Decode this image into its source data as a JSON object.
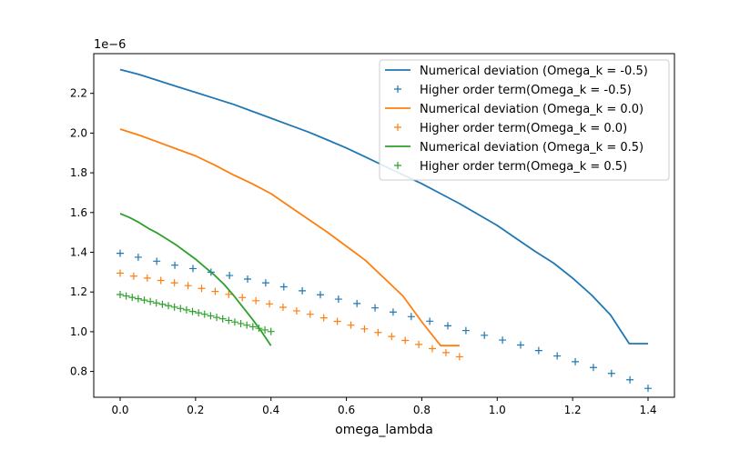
{
  "chart_data": {
    "type": "line",
    "title": "",
    "xlabel": "omega_lambda",
    "ylabel": "",
    "y_scale_label": "1e−6",
    "xlim": [
      -0.07,
      1.47
    ],
    "ylim": [
      0.67,
      2.4
    ],
    "x_ticks": [
      0.0,
      0.2,
      0.4,
      0.6,
      0.8,
      1.0,
      1.2,
      1.4
    ],
    "x_tick_labels": [
      "0.0",
      "0.2",
      "0.4",
      "0.6",
      "0.8",
      "1.0",
      "1.2",
      "1.4"
    ],
    "y_ticks": [
      0.8,
      1.0,
      1.2,
      1.4,
      1.6,
      1.8,
      2.0,
      2.2
    ],
    "y_tick_labels": [
      "0.8",
      "1.0",
      "1.2",
      "1.4",
      "1.6",
      "1.8",
      "2.0",
      "2.2"
    ],
    "grid": false,
    "legend_position": "top-right",
    "series": [
      {
        "name": "Numerical deviation (Omega_k = -0.5)",
        "style": "line",
        "color": "#1f77b4",
        "x": [
          0.0,
          0.05,
          0.1,
          0.15,
          0.2,
          0.25,
          0.3,
          0.35,
          0.4,
          0.45,
          0.5,
          0.55,
          0.6,
          0.65,
          0.7,
          0.75,
          0.8,
          0.85,
          0.9,
          0.95,
          1.0,
          1.05,
          1.1,
          1.15,
          1.2,
          1.25,
          1.3,
          1.35,
          1.4
        ],
        "y": [
          2.32,
          2.295,
          2.265,
          2.235,
          2.205,
          2.175,
          2.145,
          2.11,
          2.075,
          2.04,
          2.005,
          1.965,
          1.925,
          1.88,
          1.835,
          1.79,
          1.745,
          1.695,
          1.645,
          1.59,
          1.535,
          1.47,
          1.405,
          1.345,
          1.27,
          1.185,
          1.085,
          0.94,
          0.94
        ]
      },
      {
        "name": "Higher order term(Omega_k = -0.5)",
        "style": "marker",
        "color": "#1f77b4",
        "x": [
          0.0,
          0.048,
          0.097,
          0.145,
          0.193,
          0.241,
          0.29,
          0.338,
          0.386,
          0.434,
          0.483,
          0.531,
          0.579,
          0.628,
          0.676,
          0.724,
          0.772,
          0.821,
          0.869,
          0.917,
          0.966,
          1.014,
          1.062,
          1.11,
          1.159,
          1.207,
          1.255,
          1.303,
          1.352,
          1.4
        ],
        "y": [
          1.395,
          1.375,
          1.355,
          1.335,
          1.318,
          1.3,
          1.283,
          1.265,
          1.246,
          1.226,
          1.206,
          1.186,
          1.164,
          1.142,
          1.12,
          1.099,
          1.076,
          1.053,
          1.03,
          1.006,
          0.982,
          0.958,
          0.933,
          0.905,
          0.878,
          0.849,
          0.82,
          0.79,
          0.758,
          0.715
        ]
      },
      {
        "name": "Numerical deviation (Omega_k = 0.0)",
        "style": "line",
        "color": "#ff7f0e",
        "x": [
          0.0,
          0.05,
          0.1,
          0.15,
          0.2,
          0.25,
          0.3,
          0.35,
          0.4,
          0.45,
          0.5,
          0.55,
          0.6,
          0.65,
          0.7,
          0.75,
          0.8,
          0.85,
          0.9
        ],
        "y": [
          2.02,
          1.99,
          1.955,
          1.92,
          1.885,
          1.84,
          1.79,
          1.745,
          1.695,
          1.63,
          1.565,
          1.5,
          1.43,
          1.36,
          1.27,
          1.18,
          1.05,
          0.93,
          0.93
        ]
      },
      {
        "name": "Higher order term(Omega_k = 0.0)",
        "style": "marker",
        "color": "#ff7f0e",
        "x": [
          0.0,
          0.036,
          0.072,
          0.108,
          0.144,
          0.18,
          0.216,
          0.252,
          0.288,
          0.324,
          0.36,
          0.396,
          0.432,
          0.468,
          0.504,
          0.54,
          0.576,
          0.612,
          0.648,
          0.684,
          0.72,
          0.756,
          0.792,
          0.828,
          0.864,
          0.9
        ],
        "y": [
          1.295,
          1.28,
          1.27,
          1.258,
          1.246,
          1.232,
          1.218,
          1.203,
          1.188,
          1.172,
          1.156,
          1.14,
          1.123,
          1.105,
          1.088,
          1.07,
          1.052,
          1.033,
          1.014,
          0.996,
          0.976,
          0.956,
          0.936,
          0.915,
          0.895,
          0.874
        ]
      },
      {
        "name": "Numerical deviation (Omega_k = 0.5)",
        "style": "line",
        "color": "#2ca02c",
        "x": [
          0.0,
          0.025,
          0.05,
          0.075,
          0.1,
          0.125,
          0.15,
          0.175,
          0.2,
          0.225,
          0.25,
          0.275,
          0.3,
          0.325,
          0.35,
          0.375,
          0.4
        ],
        "y": [
          1.595,
          1.575,
          1.55,
          1.52,
          1.495,
          1.465,
          1.435,
          1.4,
          1.365,
          1.325,
          1.285,
          1.24,
          1.185,
          1.125,
          1.065,
          1.0,
          0.93
        ]
      },
      {
        "name": "Higher order term(Omega_k = 0.5)",
        "style": "marker",
        "color": "#2ca02c",
        "x": [
          0.0,
          0.016,
          0.032,
          0.048,
          0.064,
          0.08,
          0.096,
          0.112,
          0.128,
          0.144,
          0.16,
          0.176,
          0.192,
          0.208,
          0.224,
          0.24,
          0.256,
          0.272,
          0.288,
          0.304,
          0.32,
          0.336,
          0.352,
          0.368,
          0.384,
          0.4
        ],
        "y": [
          1.187,
          1.18,
          1.173,
          1.166,
          1.159,
          1.152,
          1.145,
          1.138,
          1.131,
          1.124,
          1.117,
          1.11,
          1.102,
          1.095,
          1.088,
          1.08,
          1.072,
          1.065,
          1.057,
          1.049,
          1.041,
          1.033,
          1.025,
          1.017,
          1.009,
          1.001
        ]
      }
    ]
  }
}
